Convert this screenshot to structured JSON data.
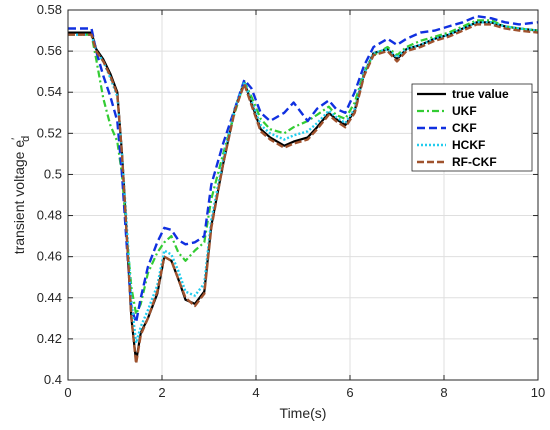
{
  "chart_data": {
    "type": "line",
    "xlabel": "Time(s)",
    "ylabel": "transient voltage e",
    "ylabel_sup": "′",
    "ylabel_sub": "d",
    "xlim": [
      0,
      10
    ],
    "ylim": [
      0.4,
      0.58
    ],
    "xticks": [
      "0",
      "2",
      "4",
      "6",
      "8",
      "10"
    ],
    "yticks": [
      "0.4",
      "0.42",
      "0.44",
      "0.46",
      "0.48",
      "0.5",
      "0.52",
      "0.54",
      "0.56",
      "0.58"
    ],
    "grid": true,
    "legend_position": "right",
    "series": [
      {
        "name": "true value",
        "color": "#000000",
        "dash": "",
        "width": 2.2,
        "points": [
          [
            0,
            0.569
          ],
          [
            0.5,
            0.569
          ],
          [
            0.6,
            0.561
          ],
          [
            0.75,
            0.556
          ],
          [
            0.9,
            0.549
          ],
          [
            1.05,
            0.54
          ],
          [
            1.15,
            0.51
          ],
          [
            1.25,
            0.47
          ],
          [
            1.35,
            0.43
          ],
          [
            1.45,
            0.409
          ],
          [
            1.55,
            0.423
          ],
          [
            1.7,
            0.43
          ],
          [
            1.9,
            0.442
          ],
          [
            2.05,
            0.46
          ],
          [
            2.2,
            0.458
          ],
          [
            2.35,
            0.449
          ],
          [
            2.5,
            0.439
          ],
          [
            2.7,
            0.437
          ],
          [
            2.9,
            0.443
          ],
          [
            3.05,
            0.475
          ],
          [
            3.3,
            0.505
          ],
          [
            3.55,
            0.532
          ],
          [
            3.75,
            0.545
          ],
          [
            3.9,
            0.535
          ],
          [
            4.1,
            0.522
          ],
          [
            4.3,
            0.518
          ],
          [
            4.6,
            0.514
          ],
          [
            4.8,
            0.516
          ],
          [
            5.1,
            0.518
          ],
          [
            5.3,
            0.523
          ],
          [
            5.55,
            0.53
          ],
          [
            5.7,
            0.527
          ],
          [
            5.9,
            0.524
          ],
          [
            6.1,
            0.531
          ],
          [
            6.3,
            0.549
          ],
          [
            6.5,
            0.559
          ],
          [
            6.8,
            0.561
          ],
          [
            7.0,
            0.556
          ],
          [
            7.2,
            0.561
          ],
          [
            7.5,
            0.563
          ],
          [
            7.8,
            0.566
          ],
          [
            8.1,
            0.568
          ],
          [
            8.4,
            0.571
          ],
          [
            8.7,
            0.574
          ],
          [
            9.0,
            0.574
          ],
          [
            9.3,
            0.572
          ],
          [
            9.6,
            0.571
          ],
          [
            10,
            0.57
          ]
        ]
      },
      {
        "name": "UKF",
        "color": "#33cc33",
        "dash": "7 3 2 3",
        "width": 2.2,
        "points": [
          [
            0,
            0.568
          ],
          [
            0.5,
            0.568
          ],
          [
            0.6,
            0.556
          ],
          [
            0.75,
            0.537
          ],
          [
            0.9,
            0.524
          ],
          [
            1.05,
            0.516
          ],
          [
            1.15,
            0.5
          ],
          [
            1.25,
            0.47
          ],
          [
            1.35,
            0.445
          ],
          [
            1.45,
            0.432
          ],
          [
            1.55,
            0.437
          ],
          [
            1.7,
            0.452
          ],
          [
            1.9,
            0.462
          ],
          [
            2.05,
            0.467
          ],
          [
            2.2,
            0.47
          ],
          [
            2.35,
            0.462
          ],
          [
            2.5,
            0.458
          ],
          [
            2.7,
            0.463
          ],
          [
            2.9,
            0.467
          ],
          [
            3.05,
            0.488
          ],
          [
            3.3,
            0.51
          ],
          [
            3.55,
            0.53
          ],
          [
            3.75,
            0.545
          ],
          [
            3.9,
            0.538
          ],
          [
            4.1,
            0.527
          ],
          [
            4.3,
            0.522
          ],
          [
            4.6,
            0.52
          ],
          [
            4.8,
            0.523
          ],
          [
            5.1,
            0.526
          ],
          [
            5.3,
            0.529
          ],
          [
            5.55,
            0.533
          ],
          [
            5.7,
            0.529
          ],
          [
            5.9,
            0.527
          ],
          [
            6.1,
            0.535
          ],
          [
            6.3,
            0.55
          ],
          [
            6.5,
            0.558
          ],
          [
            6.8,
            0.562
          ],
          [
            7.0,
            0.558
          ],
          [
            7.2,
            0.562
          ],
          [
            7.5,
            0.565
          ],
          [
            7.8,
            0.567
          ],
          [
            8.1,
            0.569
          ],
          [
            8.4,
            0.572
          ],
          [
            8.7,
            0.575
          ],
          [
            9.0,
            0.575
          ],
          [
            9.3,
            0.572
          ],
          [
            9.6,
            0.571
          ],
          [
            10,
            0.57
          ]
        ]
      },
      {
        "name": "CKF",
        "color": "#1030e0",
        "dash": "8 4",
        "width": 2.4,
        "points": [
          [
            0,
            0.571
          ],
          [
            0.5,
            0.571
          ],
          [
            0.6,
            0.56
          ],
          [
            0.75,
            0.548
          ],
          [
            0.9,
            0.538
          ],
          [
            1.05,
            0.526
          ],
          [
            1.15,
            0.5
          ],
          [
            1.25,
            0.465
          ],
          [
            1.35,
            0.435
          ],
          [
            1.45,
            0.428
          ],
          [
            1.55,
            0.44
          ],
          [
            1.7,
            0.455
          ],
          [
            1.9,
            0.467
          ],
          [
            2.05,
            0.474
          ],
          [
            2.2,
            0.473
          ],
          [
            2.35,
            0.468
          ],
          [
            2.5,
            0.466
          ],
          [
            2.7,
            0.467
          ],
          [
            2.9,
            0.47
          ],
          [
            3.05,
            0.495
          ],
          [
            3.3,
            0.515
          ],
          [
            3.55,
            0.532
          ],
          [
            3.75,
            0.546
          ],
          [
            3.9,
            0.542
          ],
          [
            4.1,
            0.53
          ],
          [
            4.3,
            0.526
          ],
          [
            4.6,
            0.53
          ],
          [
            4.8,
            0.535
          ],
          [
            5.1,
            0.526
          ],
          [
            5.3,
            0.532
          ],
          [
            5.55,
            0.536
          ],
          [
            5.7,
            0.532
          ],
          [
            5.9,
            0.53
          ],
          [
            6.1,
            0.54
          ],
          [
            6.3,
            0.553
          ],
          [
            6.5,
            0.562
          ],
          [
            6.8,
            0.566
          ],
          [
            7.0,
            0.563
          ],
          [
            7.2,
            0.566
          ],
          [
            7.5,
            0.569
          ],
          [
            7.8,
            0.57
          ],
          [
            8.1,
            0.572
          ],
          [
            8.4,
            0.574
          ],
          [
            8.7,
            0.577
          ],
          [
            9.0,
            0.576
          ],
          [
            9.3,
            0.574
          ],
          [
            9.6,
            0.573
          ],
          [
            10,
            0.574
          ]
        ]
      },
      {
        "name": "HCKF",
        "color": "#22ccee",
        "dash": "2 2",
        "width": 2.4,
        "points": [
          [
            0,
            0.568
          ],
          [
            0.5,
            0.568
          ],
          [
            0.6,
            0.56
          ],
          [
            0.75,
            0.555
          ],
          [
            0.9,
            0.547
          ],
          [
            1.05,
            0.538
          ],
          [
            1.15,
            0.51
          ],
          [
            1.25,
            0.475
          ],
          [
            1.35,
            0.438
          ],
          [
            1.45,
            0.418
          ],
          [
            1.55,
            0.426
          ],
          [
            1.7,
            0.434
          ],
          [
            1.9,
            0.446
          ],
          [
            2.05,
            0.463
          ],
          [
            2.2,
            0.461
          ],
          [
            2.35,
            0.453
          ],
          [
            2.5,
            0.443
          ],
          [
            2.7,
            0.441
          ],
          [
            2.9,
            0.447
          ],
          [
            3.05,
            0.478
          ],
          [
            3.3,
            0.507
          ],
          [
            3.55,
            0.532
          ],
          [
            3.75,
            0.545
          ],
          [
            3.9,
            0.536
          ],
          [
            4.1,
            0.524
          ],
          [
            4.3,
            0.52
          ],
          [
            4.6,
            0.517
          ],
          [
            4.8,
            0.519
          ],
          [
            5.1,
            0.521
          ],
          [
            5.3,
            0.525
          ],
          [
            5.55,
            0.531
          ],
          [
            5.7,
            0.528
          ],
          [
            5.9,
            0.525
          ],
          [
            6.1,
            0.532
          ],
          [
            6.3,
            0.549
          ],
          [
            6.5,
            0.559
          ],
          [
            6.8,
            0.561
          ],
          [
            7.0,
            0.557
          ],
          [
            7.2,
            0.561
          ],
          [
            7.5,
            0.563
          ],
          [
            7.8,
            0.566
          ],
          [
            8.1,
            0.568
          ],
          [
            8.4,
            0.571
          ],
          [
            8.7,
            0.574
          ],
          [
            9.0,
            0.574
          ],
          [
            9.3,
            0.572
          ],
          [
            9.6,
            0.571
          ],
          [
            10,
            0.57
          ]
        ]
      },
      {
        "name": "RF-CKF",
        "color": "#a0522d",
        "dash": "7 3",
        "width": 2.4,
        "points": [
          [
            0,
            0.568
          ],
          [
            0.5,
            0.568
          ],
          [
            0.6,
            0.56
          ],
          [
            0.75,
            0.555
          ],
          [
            0.9,
            0.548
          ],
          [
            1.05,
            0.539
          ],
          [
            1.15,
            0.51
          ],
          [
            1.25,
            0.47
          ],
          [
            1.35,
            0.43
          ],
          [
            1.45,
            0.408
          ],
          [
            1.55,
            0.422
          ],
          [
            1.7,
            0.43
          ],
          [
            1.9,
            0.443
          ],
          [
            2.05,
            0.46
          ],
          [
            2.2,
            0.458
          ],
          [
            2.35,
            0.449
          ],
          [
            2.5,
            0.44
          ],
          [
            2.7,
            0.436
          ],
          [
            2.9,
            0.442
          ],
          [
            3.05,
            0.474
          ],
          [
            3.3,
            0.505
          ],
          [
            3.55,
            0.531
          ],
          [
            3.75,
            0.544
          ],
          [
            3.9,
            0.534
          ],
          [
            4.1,
            0.521
          ],
          [
            4.3,
            0.517
          ],
          [
            4.6,
            0.513
          ],
          [
            4.8,
            0.515
          ],
          [
            5.1,
            0.517
          ],
          [
            5.3,
            0.522
          ],
          [
            5.55,
            0.529
          ],
          [
            5.7,
            0.526
          ],
          [
            5.9,
            0.523
          ],
          [
            6.1,
            0.53
          ],
          [
            6.3,
            0.548
          ],
          [
            6.5,
            0.558
          ],
          [
            6.8,
            0.56
          ],
          [
            7.0,
            0.555
          ],
          [
            7.2,
            0.56
          ],
          [
            7.5,
            0.562
          ],
          [
            7.8,
            0.565
          ],
          [
            8.1,
            0.567
          ],
          [
            8.4,
            0.57
          ],
          [
            8.7,
            0.573
          ],
          [
            9.0,
            0.573
          ],
          [
            9.3,
            0.571
          ],
          [
            9.6,
            0.57
          ],
          [
            10,
            0.569
          ]
        ]
      }
    ]
  }
}
